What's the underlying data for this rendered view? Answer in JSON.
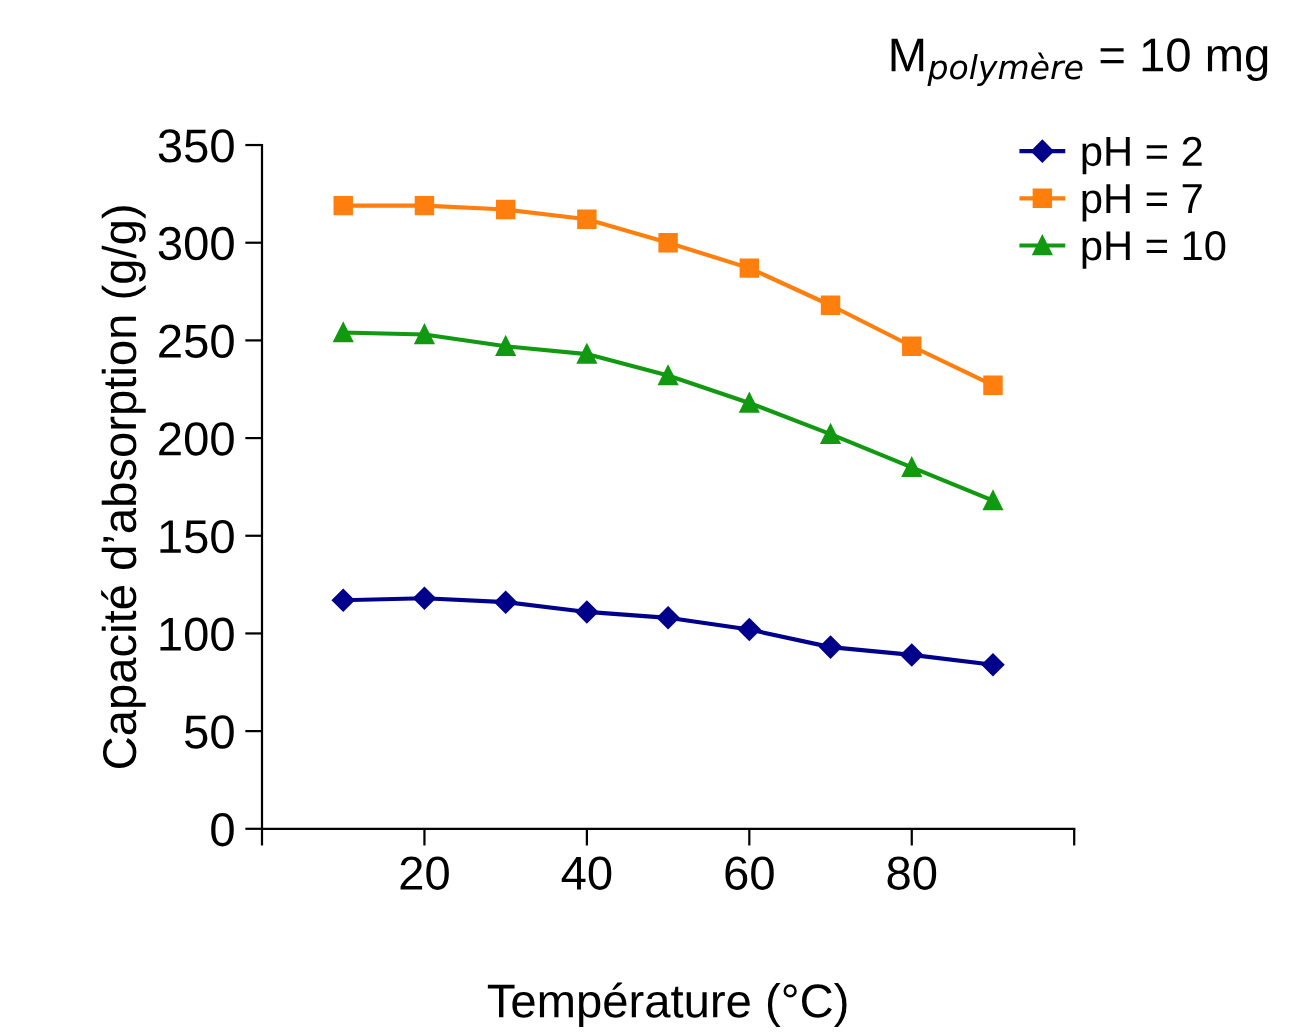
{
  "chart_data": {
    "type": "line",
    "title": "M$_{polymère}$ = 10 mg",
    "xlabel": "Température (°C)",
    "ylabel": "Capacité d’absorption (g/g)",
    "x": [
      10,
      20,
      30,
      40,
      50,
      60,
      70,
      80,
      90
    ],
    "series": [
      {
        "name": "pH = 2",
        "color": "#00008b",
        "marker": "diamond",
        "values": [
          117,
          118,
          116,
          111,
          108,
          102,
          93,
          89,
          84
        ]
      },
      {
        "name": "pH = 7",
        "color": "#ff7f0e",
        "marker": "square",
        "values": [
          319,
          319,
          317,
          312,
          300,
          287,
          268,
          247,
          227
        ]
      },
      {
        "name": "pH = 10",
        "color": "#119911",
        "marker": "triangle",
        "values": [
          254,
          253,
          247,
          243,
          232,
          218,
          202,
          185,
          168
        ]
      }
    ],
    "xlim": [
      0,
      100
    ],
    "xticks": [
      {
        "value": 0,
        "label": null
      },
      20,
      40,
      60,
      80,
      {
        "value": 100,
        "label": null
      }
    ],
    "ylim": [
      0,
      350
    ],
    "yticks": [
      0,
      50,
      100,
      150,
      200,
      250,
      300,
      350
    ],
    "grid": false,
    "legend": "top right",
    "line_style": "solid"
  }
}
